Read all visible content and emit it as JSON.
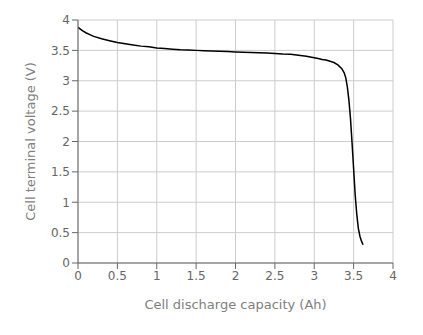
{
  "chart_data": {
    "type": "line",
    "xlabel": "Cell discharge capacity (Ah)",
    "ylabel": "Cell terminal voltage (V)",
    "x": [
      0.0,
      0.03,
      0.06,
      0.1,
      0.15,
      0.2,
      0.3,
      0.4,
      0.5,
      0.6,
      0.7,
      0.8,
      0.9,
      1.0,
      1.1,
      1.2,
      1.3,
      1.4,
      1.5,
      1.6,
      1.7,
      1.8,
      1.9,
      2.0,
      2.1,
      2.2,
      2.3,
      2.4,
      2.5,
      2.6,
      2.7,
      2.8,
      2.9,
      3.0,
      3.05,
      3.1,
      3.15,
      3.2,
      3.25,
      3.3,
      3.35,
      3.38,
      3.4,
      3.42,
      3.44,
      3.46,
      3.48,
      3.5,
      3.52,
      3.54,
      3.56,
      3.58,
      3.6,
      3.62
    ],
    "values": [
      3.88,
      3.85,
      3.82,
      3.79,
      3.76,
      3.73,
      3.69,
      3.66,
      3.63,
      3.61,
      3.59,
      3.57,
      3.56,
      3.54,
      3.53,
      3.52,
      3.51,
      3.505,
      3.5,
      3.495,
      3.49,
      3.485,
      3.48,
      3.475,
      3.47,
      3.465,
      3.46,
      3.455,
      3.45,
      3.44,
      3.435,
      3.42,
      3.405,
      3.38,
      3.365,
      3.35,
      3.34,
      3.32,
      3.3,
      3.26,
      3.2,
      3.13,
      3.05,
      2.9,
      2.68,
      2.38,
      1.98,
      1.55,
      1.12,
      0.8,
      0.57,
      0.44,
      0.36,
      0.3
    ],
    "color": "#000000",
    "xlim": [
      0,
      4
    ],
    "ylim": [
      0,
      4
    ],
    "xticks": [
      0,
      0.5,
      1,
      1.5,
      2,
      2.5,
      3,
      3.5,
      4
    ],
    "yticks": [
      0,
      0.5,
      1,
      1.5,
      2,
      2.5,
      3,
      3.5,
      4
    ],
    "grid": true
  }
}
